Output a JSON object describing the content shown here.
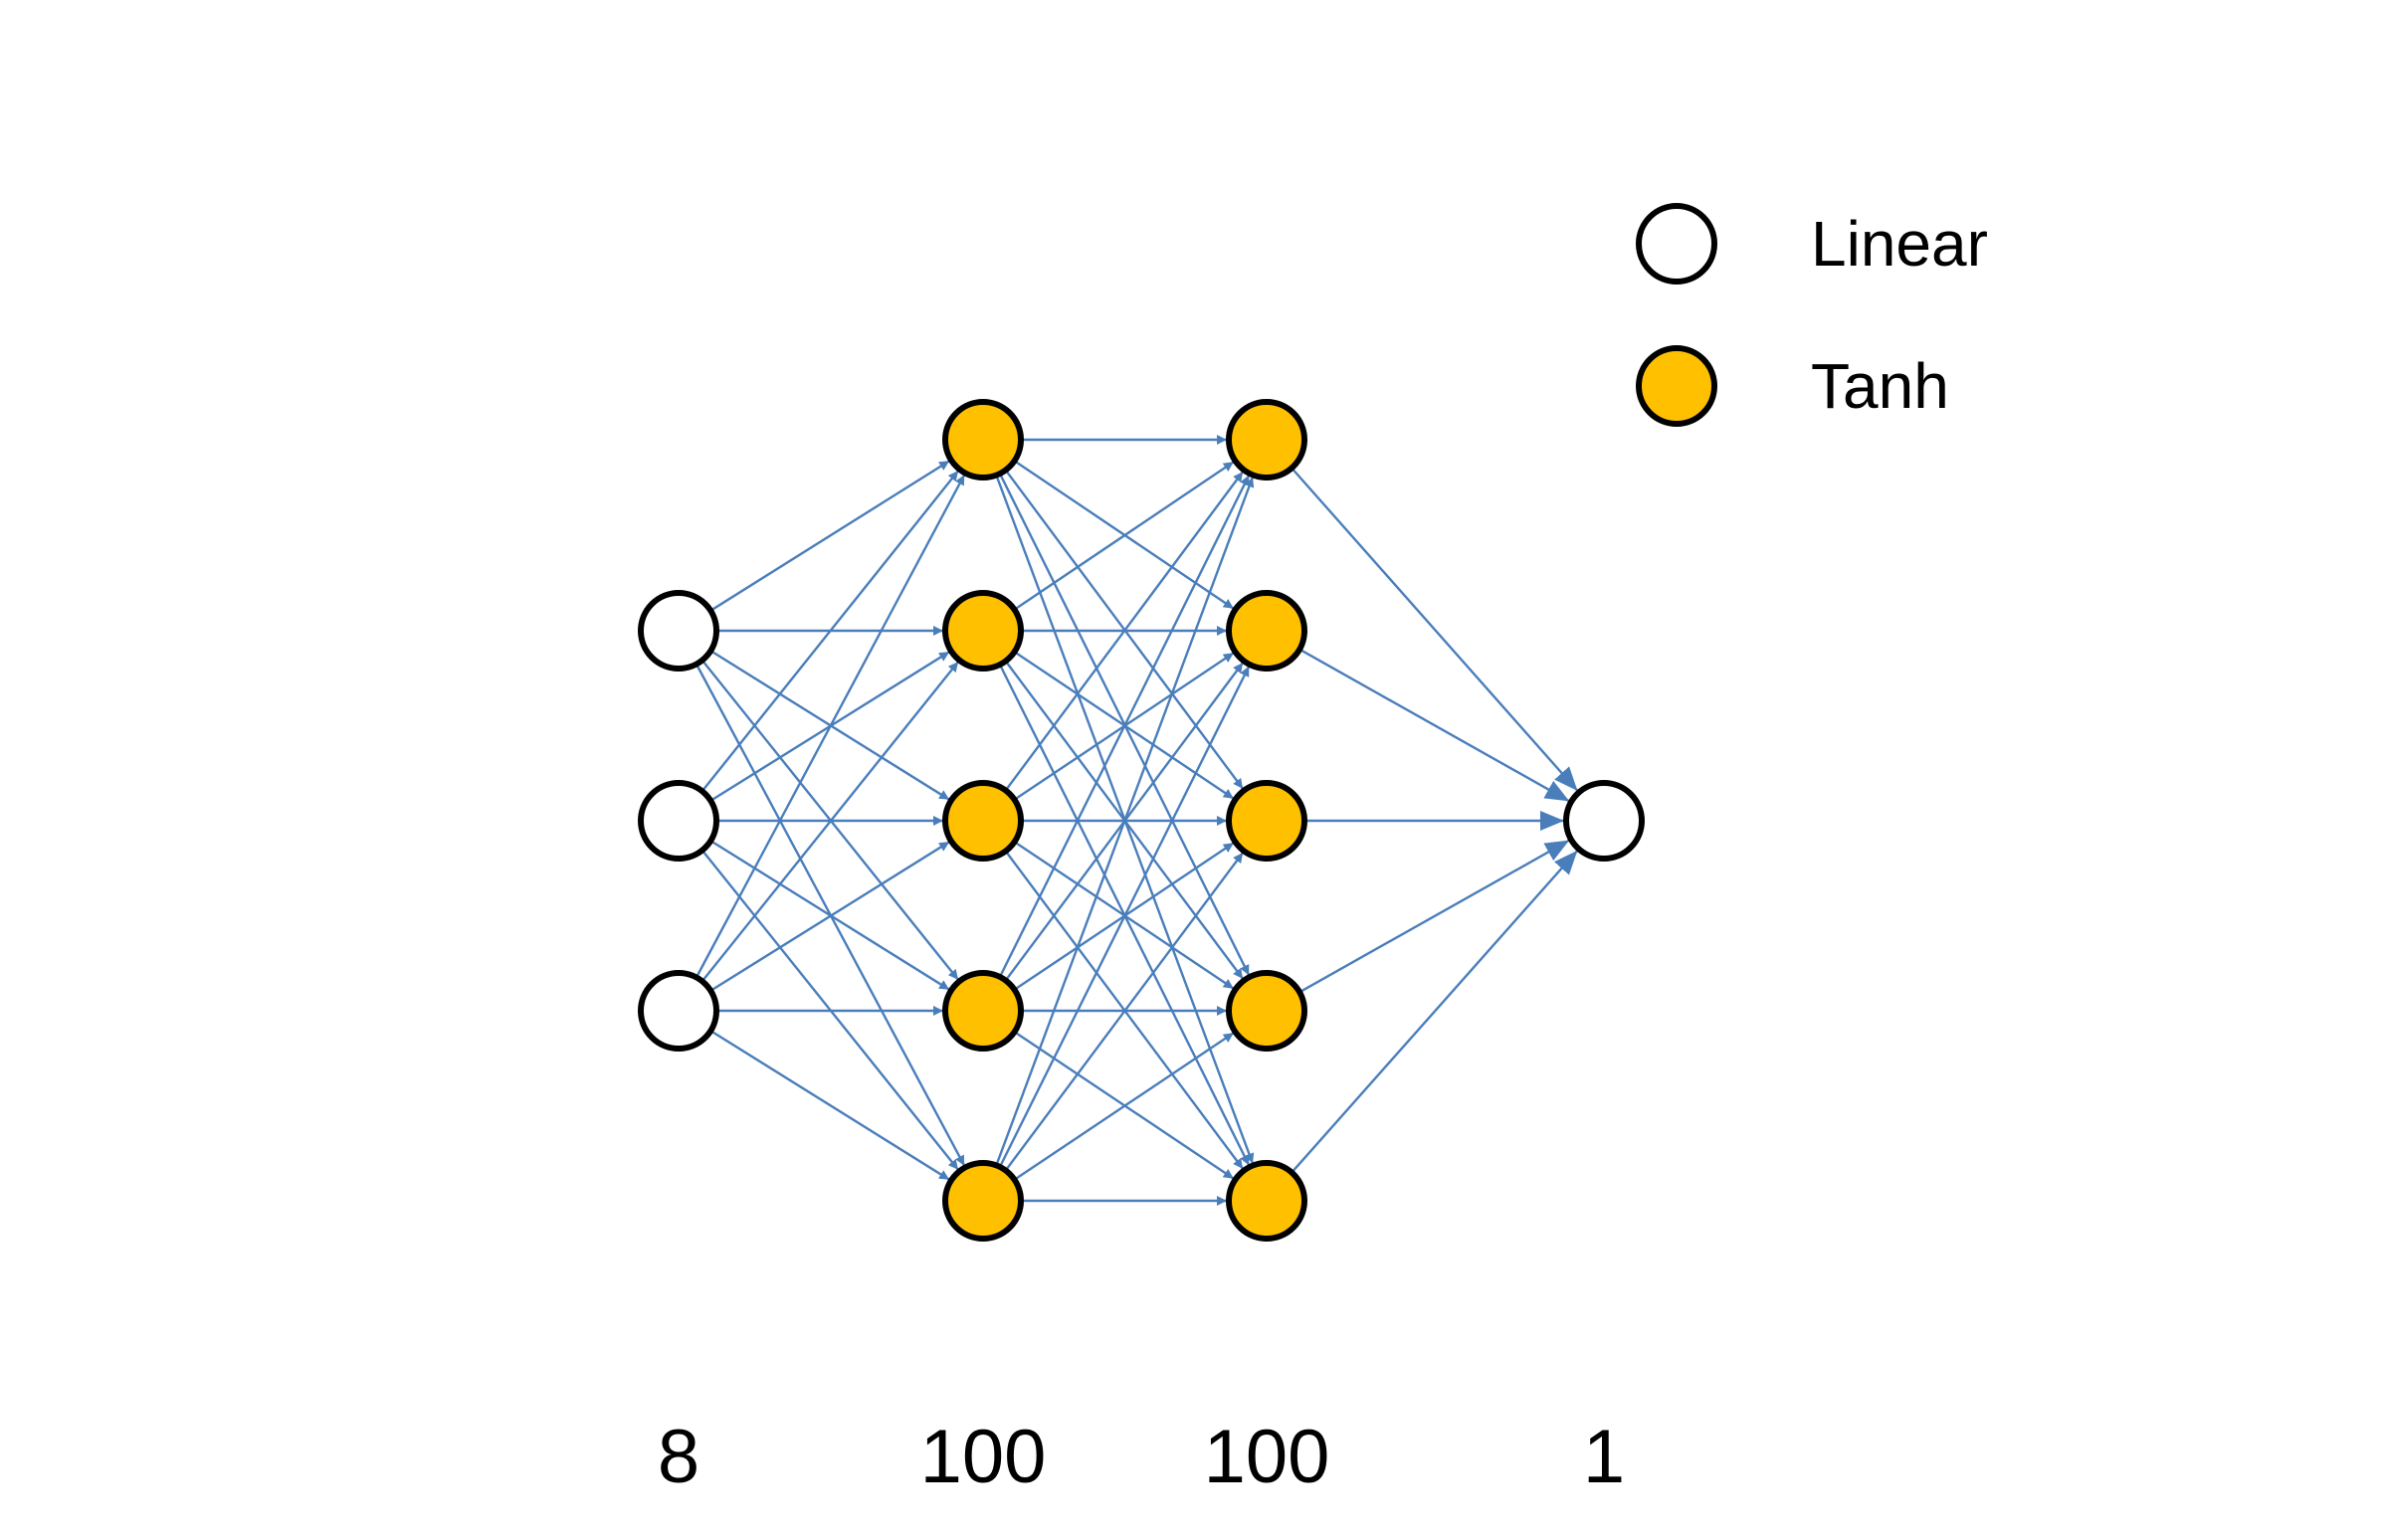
{
  "diagram": {
    "type": "feedforward-neural-network",
    "layers": [
      {
        "name": "input",
        "size_label": "8",
        "activation": "Linear",
        "drawn_nodes": 3
      },
      {
        "name": "hidden-1",
        "size_label": "100",
        "activation": "Tanh",
        "drawn_nodes": 5
      },
      {
        "name": "hidden-2",
        "size_label": "100",
        "activation": "Tanh",
        "drawn_nodes": 5
      },
      {
        "name": "output",
        "size_label": "1",
        "activation": "Linear",
        "drawn_nodes": 1
      }
    ],
    "connectivity": "fully-connected",
    "legend": [
      {
        "label": "Linear",
        "fill": "#ffffff"
      },
      {
        "label": "Tanh",
        "fill": "#ffc000"
      }
    ],
    "colors": {
      "edge": "#4a7ebb",
      "node_stroke": "#000000",
      "linear_fill": "#ffffff",
      "tanh_fill": "#ffc000"
    }
  }
}
